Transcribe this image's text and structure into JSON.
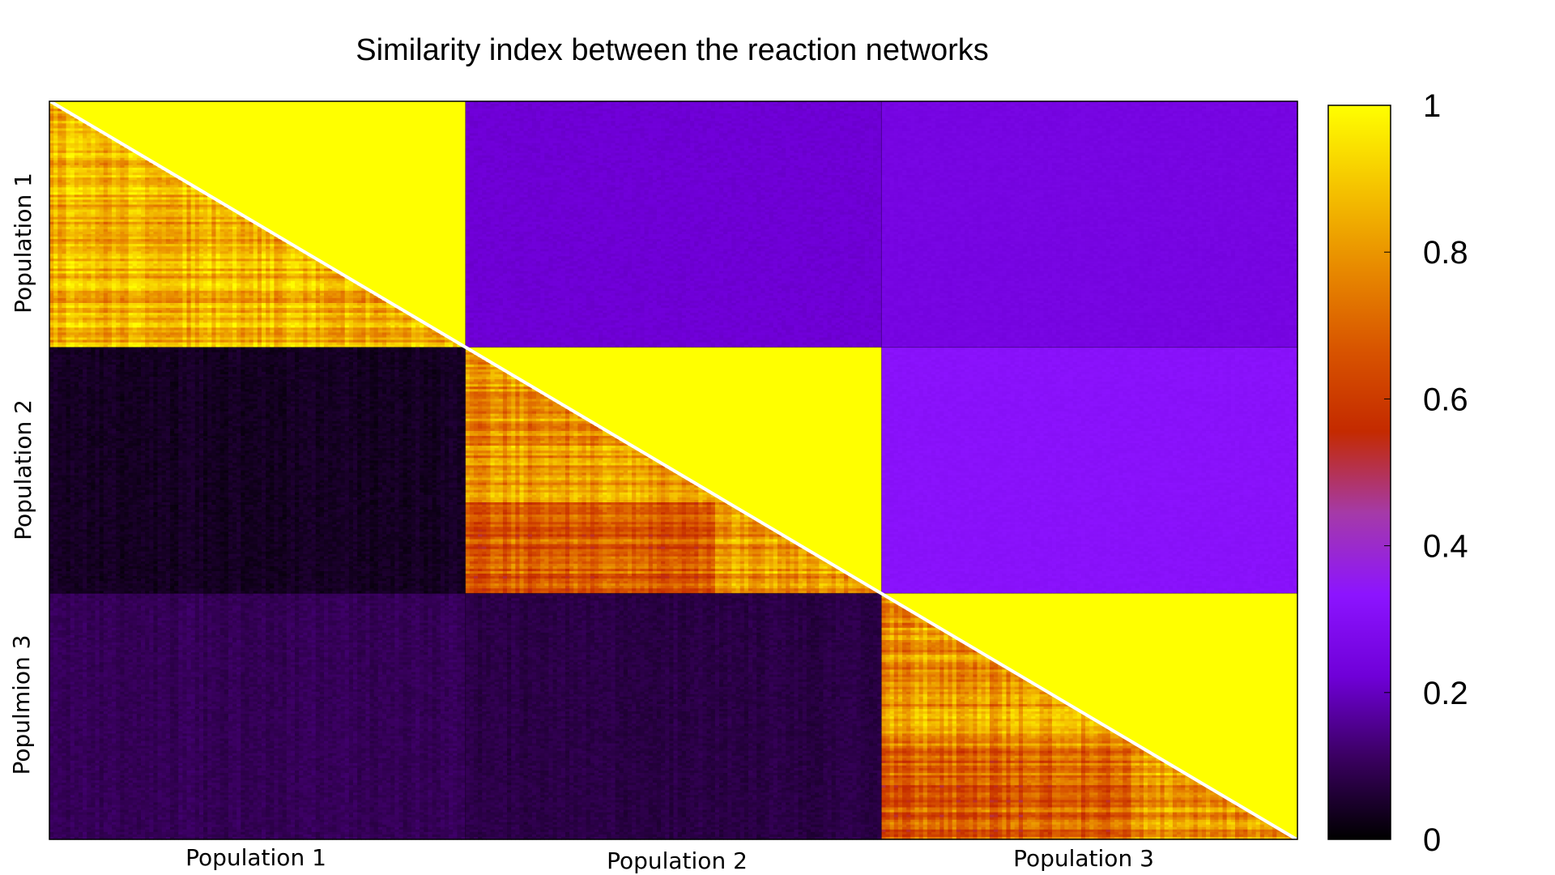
{
  "chart_data": {
    "type": "heatmap",
    "title": "Similarity index between the reaction networks",
    "x_groups": [
      "Population 1",
      "Population 2",
      "Population 3"
    ],
    "y_groups": [
      "Population 1",
      "Population 2",
      "Populmion 3"
    ],
    "colorbar": {
      "min": 0,
      "max": 1,
      "ticks": [
        "0",
        "0.2",
        "0.4",
        "0.6",
        "0.8",
        "1"
      ],
      "palette": [
        "#000000",
        "#3a0060",
        "#6f00d8",
        "#8c14ff",
        "#a53aa8",
        "#c42a00",
        "#d85400",
        "#e88a00",
        "#f5c400",
        "#ffff00"
      ]
    },
    "group_sizes": [
      100,
      100,
      100
    ],
    "block_values": {
      "upper": [
        [
          1.0,
          0.22,
          0.25
        ],
        [
          0.22,
          1.0,
          0.32
        ],
        [
          0.25,
          0.32,
          1.0
        ]
      ],
      "lower": [
        [
          0.85,
          0.22,
          0.25
        ],
        [
          0.04,
          0.8,
          0.32
        ],
        [
          0.1,
          0.08,
          0.8
        ]
      ]
    },
    "grid": false,
    "legend": "colorbar-right"
  }
}
